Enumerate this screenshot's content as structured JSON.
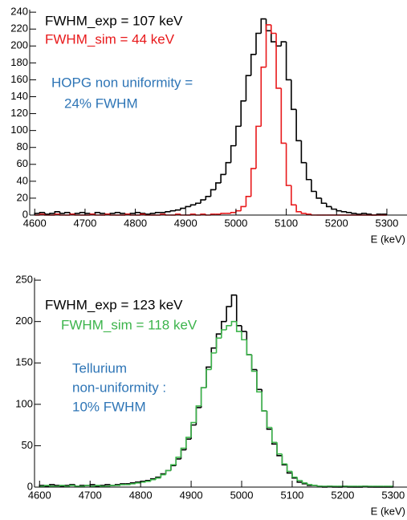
{
  "chart_data": [
    {
      "type": "line",
      "xlabel": "E (keV)",
      "annotations": [
        {
          "text": "FWHM_exp = 107 keV",
          "color": "#000000"
        },
        {
          "text": "FWHM_sim = 44 keV",
          "color": "#e8191b"
        },
        {
          "text": "HOPG non uniformity =",
          "color": "#2e75b6"
        },
        {
          "text": "24% FWHM",
          "color": "#2e75b6"
        }
      ],
      "x": [
        4605,
        4615,
        4625,
        4635,
        4645,
        4655,
        4665,
        4675,
        4685,
        4695,
        4705,
        4715,
        4725,
        4735,
        4745,
        4755,
        4765,
        4775,
        4785,
        4795,
        4805,
        4815,
        4825,
        4835,
        4845,
        4855,
        4865,
        4875,
        4885,
        4895,
        4905,
        4915,
        4925,
        4935,
        4945,
        4955,
        4965,
        4975,
        4985,
        4995,
        5005,
        5015,
        5025,
        5035,
        5045,
        5055,
        5065,
        5075,
        5085,
        5095,
        5105,
        5115,
        5125,
        5135,
        5145,
        5155,
        5165,
        5175,
        5185,
        5195,
        5205,
        5215,
        5225,
        5235,
        5245,
        5255,
        5265,
        5275,
        5285,
        5295
      ],
      "series": [
        {
          "name": "exp",
          "color": "#000000",
          "values": [
            2,
            3,
            1,
            2,
            4,
            2,
            3,
            1,
            2,
            3,
            2,
            1,
            3,
            2,
            1,
            2,
            3,
            2,
            1,
            2,
            3,
            2,
            1,
            2,
            3,
            3,
            4,
            5,
            6,
            8,
            10,
            12,
            14,
            18,
            22,
            30,
            38,
            48,
            62,
            82,
            105,
            135,
            165,
            190,
            215,
            232,
            218,
            205,
            200,
            205,
            160,
            125,
            88,
            62,
            42,
            28,
            20,
            14,
            10,
            7,
            5,
            4,
            3,
            2,
            1,
            2,
            1,
            0,
            1,
            1
          ]
        },
        {
          "name": "sim",
          "color": "#e8191b",
          "values": [
            0,
            1,
            0,
            0,
            1,
            0,
            0,
            1,
            0,
            0,
            0,
            1,
            0,
            0,
            1,
            0,
            0,
            0,
            1,
            0,
            0,
            1,
            0,
            0,
            0,
            1,
            0,
            0,
            1,
            0,
            0,
            1,
            0,
            1,
            0,
            1,
            1,
            2,
            2,
            3,
            5,
            10,
            22,
            55,
            105,
            175,
            225,
            215,
            150,
            85,
            35,
            12,
            4,
            2,
            1,
            0,
            0,
            0,
            0,
            0,
            0,
            0,
            0,
            0,
            0,
            0,
            0,
            0,
            0,
            0
          ]
        }
      ],
      "xlim": [
        4590,
        5340
      ],
      "ylim": [
        0,
        243
      ],
      "xticks": [
        4600,
        4700,
        4800,
        4900,
        5000,
        5100,
        5200,
        5300
      ],
      "yticks": [
        0,
        20,
        40,
        60,
        80,
        100,
        120,
        140,
        160,
        180,
        200,
        220,
        240
      ]
    },
    {
      "type": "line",
      "xlabel": "E (keV)",
      "annotations": [
        {
          "text": "FWHM_exp = 123 keV",
          "color": "#000000"
        },
        {
          "text": "FWHM_sim = 118 keV",
          "color": "#3cb44b"
        },
        {
          "text": "Tellurium",
          "color": "#2e75b6"
        },
        {
          "text": "non-uniformity :",
          "color": "#2e75b6"
        },
        {
          "text": "10% FWHM",
          "color": "#2e75b6"
        }
      ],
      "x": [
        4605,
        4615,
        4625,
        4635,
        4645,
        4655,
        4665,
        4675,
        4685,
        4695,
        4705,
        4715,
        4725,
        4735,
        4745,
        4755,
        4765,
        4775,
        4785,
        4795,
        4805,
        4815,
        4825,
        4835,
        4845,
        4855,
        4865,
        4875,
        4885,
        4895,
        4905,
        4915,
        4925,
        4935,
        4945,
        4955,
        4965,
        4975,
        4985,
        4995,
        5005,
        5015,
        5025,
        5035,
        5045,
        5055,
        5065,
        5075,
        5085,
        5095,
        5105,
        5115,
        5125,
        5135,
        5145,
        5155,
        5165,
        5175,
        5185,
        5195,
        5205,
        5215,
        5225,
        5235,
        5245,
        5255,
        5265,
        5275,
        5285,
        5295
      ],
      "series": [
        {
          "name": "exp",
          "color": "#000000",
          "values": [
            2,
            1,
            3,
            2,
            1,
            2,
            3,
            1,
            2,
            2,
            3,
            1,
            2,
            3,
            2,
            3,
            4,
            4,
            5,
            6,
            7,
            8,
            10,
            12,
            16,
            20,
            26,
            34,
            45,
            58,
            75,
            96,
            120,
            145,
            168,
            185,
            200,
            218,
            232,
            195,
            188,
            160,
            142,
            118,
            92,
            70,
            52,
            38,
            27,
            17,
            11,
            6,
            4,
            2,
            2,
            1,
            0,
            1,
            0,
            0,
            1,
            0,
            0,
            0,
            1,
            0,
            0,
            0,
            0,
            0
          ]
        },
        {
          "name": "sim",
          "color": "#3cb44b",
          "values": [
            1,
            2,
            1,
            1,
            2,
            1,
            2,
            1,
            1,
            2,
            1,
            2,
            1,
            1,
            2,
            2,
            3,
            3,
            4,
            5,
            6,
            7,
            9,
            11,
            15,
            20,
            27,
            36,
            47,
            60,
            78,
            98,
            120,
            142,
            162,
            180,
            190,
            195,
            200,
            188,
            178,
            160,
            140,
            115,
            92,
            72,
            54,
            40,
            28,
            19,
            12,
            8,
            5,
            3,
            2,
            1,
            1,
            1,
            1,
            1,
            1,
            1,
            1,
            1,
            1,
            1,
            1,
            1,
            1,
            1
          ]
        }
      ],
      "xlim": [
        4590,
        5340
      ],
      "ylim": [
        0,
        253
      ],
      "xticks": [
        4600,
        4700,
        4800,
        4900,
        5000,
        5100,
        5200,
        5300
      ],
      "yticks": [
        0,
        50,
        100,
        150,
        200,
        250
      ]
    }
  ]
}
